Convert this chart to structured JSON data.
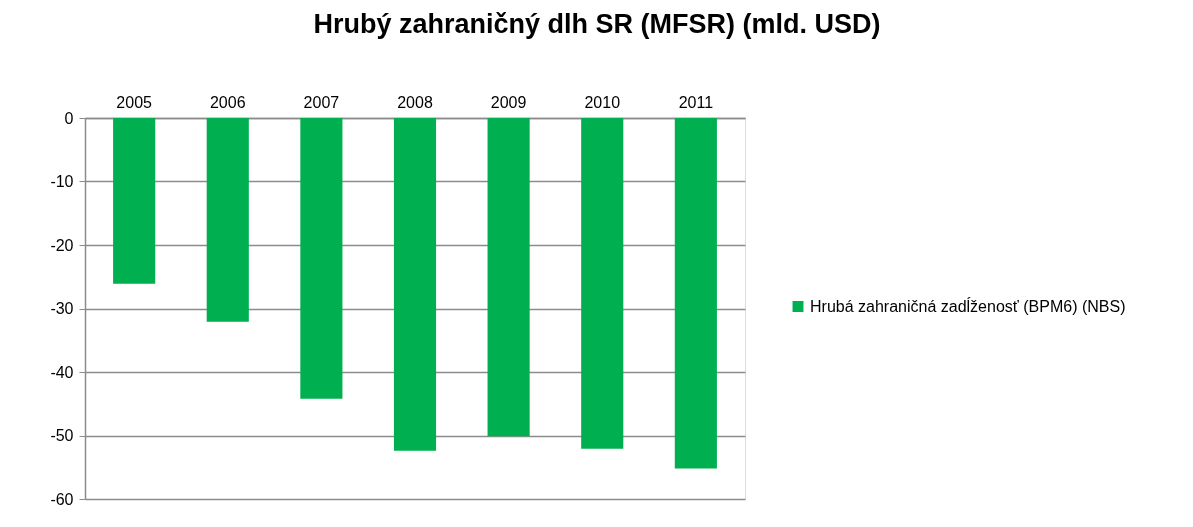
{
  "chart_data": {
    "type": "bar",
    "title": "Hrubý zahraničný dlh SR (MFSR) (mld. USD)",
    "categories": [
      "2005",
      "2006",
      "2007",
      "2008",
      "2009",
      "2010",
      "2011"
    ],
    "series": [
      {
        "name": "Hrubá zahraničná zadĺženosť (BPM6) (NBS)",
        "color": "#00b050",
        "values": [
          -26.1,
          -32.1,
          -44.2,
          -52.4,
          -50.1,
          -52.1,
          -55.2
        ]
      }
    ],
    "ylim": [
      -60,
      0
    ],
    "yticks": [
      -60,
      -50,
      -40,
      -30,
      -20,
      -10,
      0
    ],
    "grid": "y",
    "legend": "right"
  }
}
